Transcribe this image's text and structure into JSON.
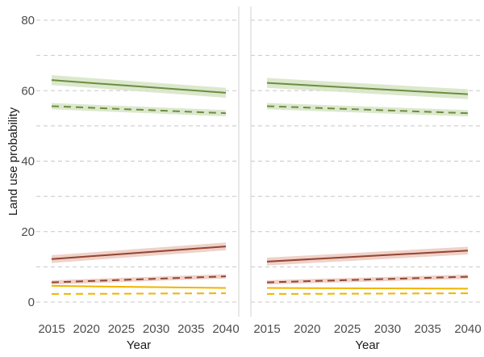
{
  "chart_data": {
    "type": "line",
    "ylabel": "Land use probability",
    "xlabel": "Year",
    "xlim": [
      2015,
      2040
    ],
    "ylim": [
      -4,
      84
    ],
    "x_ticks": [
      2015,
      2020,
      2025,
      2030,
      2035,
      2040
    ],
    "y_ticks": [
      0,
      20,
      40,
      60,
      80
    ],
    "y_minor_gridlines": [
      10,
      30,
      50,
      70
    ],
    "grid": "dashed horizontal",
    "legend": "none",
    "colors": {
      "green": "#6b8e3f",
      "green_band": "#d6e4c4",
      "red": "#93452f",
      "red_band": "#ecc9bf",
      "orange": "#f0b400",
      "grid": "#c8c8c8",
      "divider": "#d0d0d0"
    },
    "panels": [
      {
        "series": [
          {
            "color": "green",
            "dash": false,
            "x": [
              2015,
              2040
            ],
            "y": [
              63.0,
              59.4
            ],
            "band": 1.4
          },
          {
            "color": "green",
            "dash": true,
            "x": [
              2015,
              2040
            ],
            "y": [
              55.6,
              53.6
            ],
            "band": 0.9
          },
          {
            "color": "red",
            "dash": false,
            "x": [
              2015,
              2040
            ],
            "y": [
              12.2,
              15.8
            ],
            "band": 1.1
          },
          {
            "color": "red",
            "dash": true,
            "x": [
              2015,
              2040
            ],
            "y": [
              5.6,
              7.3
            ],
            "band": 0.6
          },
          {
            "color": "orange",
            "dash": false,
            "x": [
              2015,
              2040
            ],
            "y": [
              4.6,
              4.0
            ],
            "band": 0
          },
          {
            "color": "orange",
            "dash": true,
            "x": [
              2015,
              2040
            ],
            "y": [
              2.3,
              2.5
            ],
            "band": 0
          }
        ]
      },
      {
        "series": [
          {
            "color": "green",
            "dash": false,
            "x": [
              2015,
              2040
            ],
            "y": [
              62.2,
              59.0
            ],
            "band": 1.4
          },
          {
            "color": "green",
            "dash": true,
            "x": [
              2015,
              2040
            ],
            "y": [
              55.6,
              53.6
            ],
            "band": 0.9
          },
          {
            "color": "red",
            "dash": false,
            "x": [
              2015,
              2040
            ],
            "y": [
              11.5,
              14.6
            ],
            "band": 1.1
          },
          {
            "color": "red",
            "dash": true,
            "x": [
              2015,
              2040
            ],
            "y": [
              5.6,
              7.2
            ],
            "band": 0.6
          },
          {
            "color": "orange",
            "dash": false,
            "x": [
              2015,
              2040
            ],
            "y": [
              4.0,
              3.8
            ],
            "band": 0
          },
          {
            "color": "orange",
            "dash": true,
            "x": [
              2015,
              2040
            ],
            "y": [
              2.3,
              2.5
            ],
            "band": 0
          }
        ]
      }
    ]
  }
}
